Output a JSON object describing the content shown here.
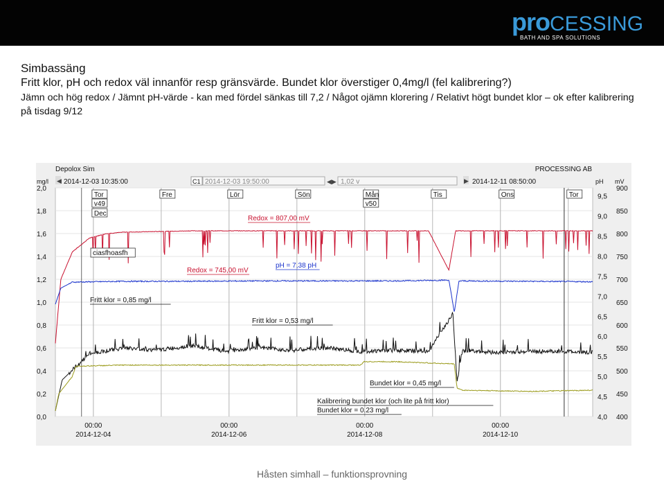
{
  "brand": {
    "logo_text_pro": "pro",
    "logo_text_rest": "CESSING",
    "logo_tagline": "BATH AND SPA SOLUTIONS"
  },
  "slide": {
    "heading": "Simbassäng",
    "line2": "Fritt klor, pH och redox väl innanför resp gränsvärde. Bundet klor överstiger 0,4mg/l (fel kalibrering?)",
    "paragraph": "Jämn och hög redox / Jämnt pH-värde - kan med fördel sänkas till 7,2 / Något ojämn klorering / Relativt högt bundet klor – ok efter kalibrering på tisdag 9/12",
    "footer": "Håsten simhall – funktionsprovning"
  },
  "colors": {
    "background": "#ffffff",
    "topbar": "#030303",
    "brand_blue": "#3a9ad9",
    "redox": "#c8102e",
    "ph": "#1a33cc",
    "free_chlorine": "#111111",
    "combined_chlorine": "#9a9a1a",
    "panel": "#efefef"
  },
  "toolbar": {
    "app_name": "Depolox Sim",
    "company": "PROCESSING AB",
    "start_time": "2014-12-03 10:35:00",
    "cursor_label": "C1",
    "cursor_time": "2014-12-03 19:50:00",
    "cursor_value": "1,02 v",
    "end_time": "2014-12-11 08:50:00"
  },
  "chart_data": {
    "type": "line",
    "axes": {
      "left": {
        "unit": "mg/l",
        "range": [
          0.0,
          2.0
        ],
        "ticks": [
          "0,0",
          "0,2",
          "0,4",
          "0,6",
          "0,8",
          "1,0",
          "1,2",
          "1,4",
          "1,6",
          "1,8",
          "2,0"
        ]
      },
      "right_ph": {
        "unit": "pH",
        "range": [
          4.0,
          9.7
        ],
        "ticks": [
          "4,0",
          "4,5",
          "5,0",
          "5,5",
          "6,0",
          "6,5",
          "7,0",
          "7,5",
          "8,0",
          "8,5",
          "9,0",
          "9,5"
        ]
      },
      "right_mv": {
        "unit": "mV",
        "range": [
          400,
          900
        ],
        "ticks": [
          "400",
          "450",
          "500",
          "550",
          "600",
          "650",
          "700",
          "750",
          "800",
          "850",
          "900"
        ]
      },
      "x": {
        "start": "2014-12-03 10:35:00",
        "end": "2014-12-11 08:50:00",
        "ticks": [
          {
            "time": "00:00",
            "date": "2014-12-04"
          },
          {
            "time": "00:00",
            "date": "2014-12-06"
          },
          {
            "time": "00:00",
            "date": "2014-12-08"
          },
          {
            "time": "00:00",
            "date": "2014-12-10"
          }
        ]
      }
    },
    "day_markers": [
      {
        "label": "Tor",
        "day": 0.56
      },
      {
        "label": "Fre",
        "day": 1.56
      },
      {
        "label": "Lör",
        "day": 2.56
      },
      {
        "label": "Sön",
        "day": 3.56
      },
      {
        "label": "Mån",
        "day": 4.56
      },
      {
        "label": "Tis",
        "day": 5.56
      },
      {
        "label": "Ons",
        "day": 6.56
      },
      {
        "label": "Tor",
        "day": 7.56
      }
    ],
    "marker_notes": [
      "v49",
      "Dec",
      "v50"
    ],
    "series": [
      {
        "name": "Redox",
        "axis": "mV",
        "color": "#c8102e",
        "points": [
          [
            0.0,
            560
          ],
          [
            0.08,
            700
          ],
          [
            0.25,
            760
          ],
          [
            0.5,
            790
          ],
          [
            0.75,
            800
          ],
          [
            1.0,
            803
          ],
          [
            2.0,
            806
          ],
          [
            3.0,
            806
          ],
          [
            4.0,
            806
          ],
          [
            5.0,
            806
          ],
          [
            5.5,
            806
          ],
          [
            5.8,
            720
          ],
          [
            5.9,
            806
          ],
          [
            6.0,
            806
          ],
          [
            7.0,
            806
          ],
          [
            7.9,
            806
          ]
        ]
      },
      {
        "name": "pH",
        "axis": "pH",
        "color": "#1a33cc",
        "points": [
          [
            0.0,
            6.8
          ],
          [
            0.08,
            7.2
          ],
          [
            0.25,
            7.35
          ],
          [
            1.0,
            7.37
          ],
          [
            2.0,
            7.37
          ],
          [
            3.0,
            7.38
          ],
          [
            4.0,
            7.38
          ],
          [
            5.0,
            7.38
          ],
          [
            5.8,
            7.4
          ],
          [
            5.88,
            6.6
          ],
          [
            5.95,
            7.38
          ],
          [
            7.0,
            7.37
          ],
          [
            7.9,
            7.36
          ]
        ]
      },
      {
        "name": "Fritt klor",
        "axis": "mg/l",
        "color": "#111111",
        "points": [
          [
            0.0,
            0.05
          ],
          [
            0.1,
            0.32
          ],
          [
            0.5,
            0.55
          ],
          [
            1.0,
            0.6
          ],
          [
            1.5,
            0.58
          ],
          [
            2.0,
            0.62
          ],
          [
            2.5,
            0.57
          ],
          [
            3.0,
            0.6
          ],
          [
            3.5,
            0.58
          ],
          [
            4.0,
            0.6
          ],
          [
            4.5,
            0.57
          ],
          [
            5.0,
            0.58
          ],
          [
            5.5,
            0.57
          ],
          [
            5.86,
            0.9
          ],
          [
            5.92,
            0.3
          ],
          [
            6.0,
            0.58
          ],
          [
            6.5,
            0.56
          ],
          [
            7.0,
            0.57
          ],
          [
            7.5,
            0.57
          ],
          [
            7.9,
            0.56
          ]
        ]
      },
      {
        "name": "Bundet klor",
        "axis": "mg/l",
        "color": "#9a9a1a",
        "points": [
          [
            0.0,
            0.05
          ],
          [
            0.05,
            0.2
          ],
          [
            0.25,
            0.35
          ],
          [
            0.3,
            0.44
          ],
          [
            1.0,
            0.45
          ],
          [
            2.0,
            0.45
          ],
          [
            3.0,
            0.45
          ],
          [
            4.0,
            0.45
          ],
          [
            4.5,
            0.45
          ],
          [
            4.55,
            0.48
          ],
          [
            5.0,
            0.48
          ],
          [
            5.88,
            0.46
          ],
          [
            5.92,
            0.25
          ],
          [
            6.0,
            0.23
          ],
          [
            7.0,
            0.22
          ],
          [
            7.9,
            0.23
          ]
        ]
      }
    ],
    "annotations": [
      "Redox = 807,00 mV",
      "Redox = 745,00 mV",
      "pH = 7,38 pH",
      "ciasfhoasfh",
      "Fritt klor = 0,85 mg/l",
      "Fritt klor = 0,53 mg/l",
      "Bundet klor = 0,45 mg/l",
      "Kalibrering bundet klor (och lite på fritt klor)",
      "Bundet klor = 0.23 mg/l"
    ]
  }
}
